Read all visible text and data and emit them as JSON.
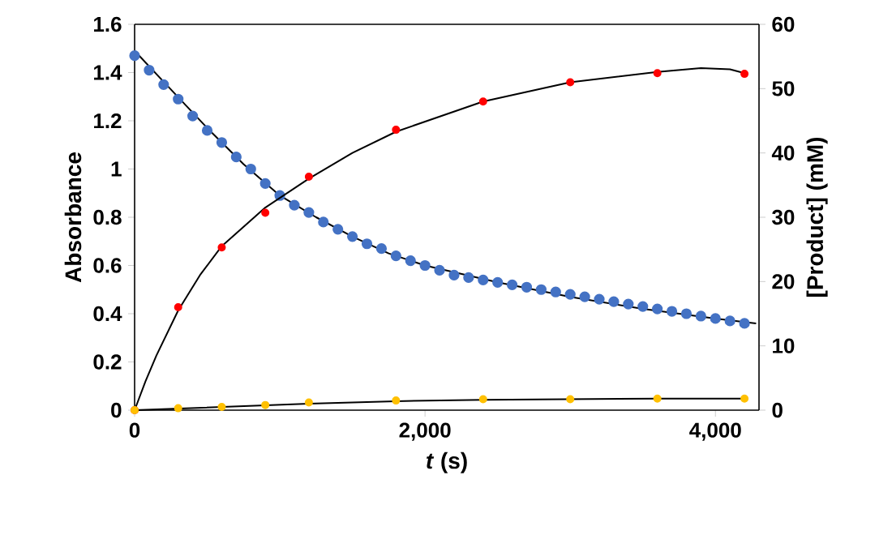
{
  "chart_data": {
    "type": "scatter",
    "xlabel": "*t* (s)",
    "ylabel": "Absorbance",
    "y2label": "[Product] (mM)",
    "xlim": [
      0,
      4300
    ],
    "xticks": [
      0,
      {
        "value": 2000,
        "label": "2,000"
      },
      {
        "value": 4000,
        "label": "4,000"
      }
    ],
    "ylim": [
      0,
      1.6
    ],
    "yticks": [
      0,
      0.2,
      0.4,
      0.6,
      0.8,
      1,
      1.2,
      1.4,
      1.6
    ],
    "y2lim": [
      0,
      60
    ],
    "y2ticks": [
      0,
      10,
      20,
      30,
      40,
      50,
      60
    ],
    "series": [
      {
        "marker": "circle",
        "color": "#4472c4",
        "x": [
          0,
          100,
          200,
          300,
          400,
          500,
          600,
          700,
          800,
          900,
          1000,
          1100,
          1200,
          1300,
          1400,
          1500,
          1600,
          1700,
          1800,
          1900,
          2000,
          2100,
          2200,
          2300,
          2400,
          2500,
          2600,
          2700,
          2800,
          2900,
          3000,
          3100,
          3200,
          3300,
          3400,
          3500,
          3600,
          3700,
          3800,
          3900,
          4000,
          4100,
          4200
        ],
        "values": [
          1.47,
          1.41,
          1.35,
          1.29,
          1.22,
          1.16,
          1.11,
          1.05,
          1.0,
          0.94,
          0.89,
          0.85,
          0.82,
          0.78,
          0.75,
          0.72,
          0.69,
          0.67,
          0.64,
          0.62,
          0.6,
          0.58,
          0.56,
          0.55,
          0.54,
          0.53,
          0.52,
          0.51,
          0.5,
          0.49,
          0.48,
          0.47,
          0.46,
          0.45,
          0.44,
          0.43,
          0.42,
          0.41,
          0.4,
          0.39,
          0.38,
          0.37,
          0.36
        ]
      },
      {
        "type": "line",
        "marker": "none",
        "line_style": "solid",
        "color": "#000000",
        "x": [
          0,
          250,
          500,
          750,
          1000,
          1250,
          1500,
          1750,
          2000,
          2500,
          3000,
          3500,
          4000,
          4280
        ],
        "values": [
          1.49,
          1.33,
          1.17,
          1.02,
          0.89,
          0.8,
          0.72,
          0.65,
          0.6,
          0.53,
          0.47,
          0.42,
          0.38,
          0.36
        ]
      },
      {
        "axis": "y2",
        "marker": "circle",
        "color": "#ff0000",
        "x": [
          0,
          300,
          600,
          900,
          1200,
          1800,
          2400,
          3000,
          3600,
          4200
        ],
        "values": [
          0,
          16,
          25.3,
          30.7,
          36.3,
          43.6,
          48,
          51,
          52.4,
          52.3
        ]
      },
      {
        "type": "line",
        "axis": "y2",
        "marker": "none",
        "line_style": "solid",
        "color": "#000000",
        "x": [
          0,
          75,
          150,
          300,
          450,
          600,
          900,
          1200,
          1500,
          1800,
          2400,
          3000,
          3600,
          3900,
          4100,
          4200
        ],
        "values": [
          0,
          4.5,
          8.5,
          15.5,
          21,
          25.5,
          31.5,
          36,
          40,
          43.3,
          48,
          51,
          52.6,
          53.2,
          53,
          52.4
        ]
      },
      {
        "axis": "y2",
        "marker": "circle",
        "color": "#ffc000",
        "x": [
          0,
          300,
          600,
          900,
          1200,
          1800,
          2400,
          3000,
          3600,
          4200
        ],
        "values": [
          0,
          0.3,
          0.5,
          0.8,
          1.2,
          1.5,
          1.7,
          1.7,
          1.8,
          1.8
        ]
      },
      {
        "type": "line",
        "axis": "y2",
        "marker": "none",
        "line_style": "solid",
        "color": "#000000",
        "x": [
          0,
          600,
          1200,
          1800,
          2400,
          3000,
          3600,
          4200
        ],
        "values": [
          0,
          0.5,
          1.0,
          1.4,
          1.6,
          1.7,
          1.8,
          1.8
        ]
      }
    ]
  }
}
